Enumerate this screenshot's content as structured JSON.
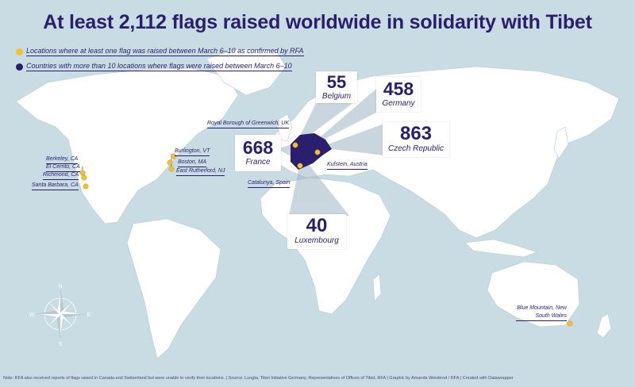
{
  "title": "At least 2,112 flags raised worldwide in solidarity with Tibet",
  "legend": [
    {
      "label": "Locations where at least one flag was raised between March 6–10 as confirmed by RFA",
      "color": "#f2c230"
    },
    {
      "label": "Countries with more than 10 locations where flags were raised between March 6–10",
      "color": "#2a1f6e"
    }
  ],
  "country_stats": [
    {
      "id": "belgium",
      "count": "55",
      "name": "Belgium"
    },
    {
      "id": "germany",
      "count": "458",
      "name": "Germany"
    },
    {
      "id": "france",
      "count": "668",
      "name": "France"
    },
    {
      "id": "czech",
      "count": "863",
      "name": "Czech Republic"
    },
    {
      "id": "luxembourg",
      "count": "40",
      "name": "Luxembourg"
    }
  ],
  "locations": [
    {
      "id": "berkeley",
      "label": "Berkeley, CA"
    },
    {
      "id": "el-cerrito",
      "label": "El Cerrito, CA"
    },
    {
      "id": "richmond",
      "label": "Richmond, CA"
    },
    {
      "id": "santa-barbara",
      "label": "Santa Barbara, CA"
    },
    {
      "id": "burlington",
      "label": "Burlington, VT"
    },
    {
      "id": "boston",
      "label": "Boston, MA"
    },
    {
      "id": "east-rutherford",
      "label": "East Rutherford, NJ"
    },
    {
      "id": "greenwich",
      "label": "Royal Borough of Greenwich, UK"
    },
    {
      "id": "kufstein",
      "label": "Kufstein, Austria"
    },
    {
      "id": "catalunya",
      "label": "Catalunya, Spain"
    },
    {
      "id": "blue-mountain",
      "label": "Blue Mountain, New South Wales"
    }
  ],
  "compass": {
    "n": "N",
    "s": "S",
    "e": "E",
    "w": "W"
  },
  "footnote": "Note: RFA also received reports of flags raised in Canada and Switzerland but were unable to verify their locations. | Source: Lungta, Tibet Initiative Germany, Representatives of Offices of Tibet, RFA | Graphic by Amanda Weisbrod / RFA | Created with Datawrapper",
  "colors": {
    "ocean": "#c9dce3",
    "land": "#ffffff",
    "highlight": "#2a1f6e",
    "marker": "#f2c230",
    "text": "#2a1f6e"
  }
}
